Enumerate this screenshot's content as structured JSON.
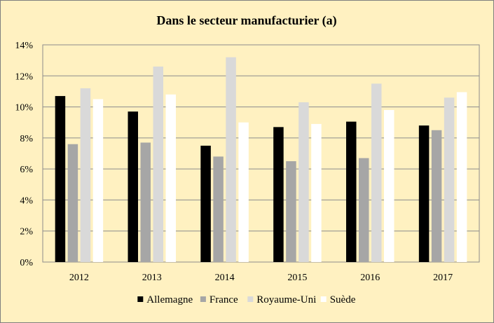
{
  "chart_data": {
    "type": "bar",
    "title": "Dans le secteur manufacturier (a)",
    "xlabel": "",
    "ylabel": "",
    "categories": [
      "2012",
      "2013",
      "2014",
      "2015",
      "2016",
      "2017"
    ],
    "ylim": [
      0,
      14
    ],
    "yticks": [
      0,
      2,
      4,
      6,
      8,
      10,
      12,
      14
    ],
    "ytick_labels": [
      "0%",
      "2%",
      "4%",
      "6%",
      "8%",
      "10%",
      "12%",
      "14%"
    ],
    "grid": true,
    "legend_position": "bottom",
    "series": [
      {
        "name": "Allemagne",
        "color": "#000000",
        "values": [
          10.7,
          9.7,
          7.5,
          8.7,
          9.05,
          8.8
        ]
      },
      {
        "name": "France",
        "color": "#a6a6a6",
        "values": [
          7.6,
          7.7,
          6.8,
          6.5,
          6.7,
          8.5
        ]
      },
      {
        "name": "Royaume-Uni",
        "color": "#d9d9d9",
        "values": [
          11.2,
          12.6,
          13.2,
          10.3,
          11.5,
          10.6
        ]
      },
      {
        "name": "Suède",
        "color": "#ffffff",
        "values": [
          10.5,
          10.8,
          9.0,
          8.9,
          9.8,
          10.95
        ]
      }
    ]
  }
}
